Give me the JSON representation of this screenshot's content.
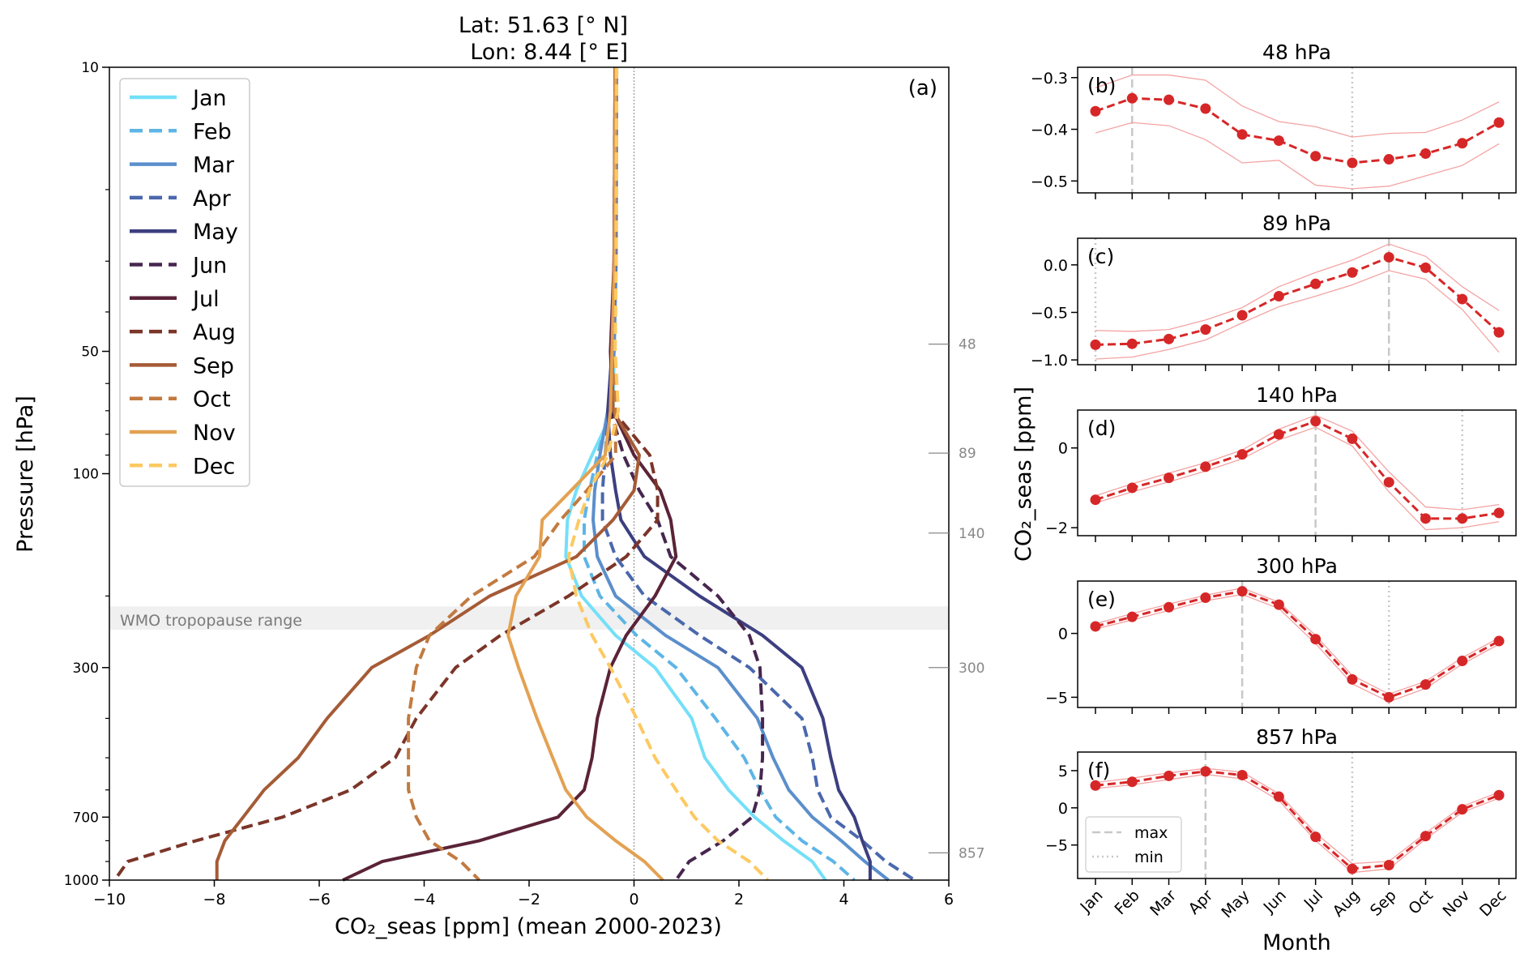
{
  "chart_data": [
    {
      "type": "line",
      "panel_label": "(a)",
      "title_lines": [
        "Lat:    51.63 [° N]",
        "Lon:     8.44 [° E]"
      ],
      "xlabel": "CO₂_seas [ppm] (mean 2000-2023)",
      "ylabel": "Pressure [hPa]",
      "xlim": [
        -10,
        6
      ],
      "ylim": [
        1000,
        10
      ],
      "yscale": "log",
      "x_ticks": [
        -10,
        -8,
        -6,
        -4,
        -2,
        0,
        2,
        4,
        6
      ],
      "x_tick_labels": [
        "−10",
        "−8",
        "−6",
        "−4",
        "−2",
        "0",
        "2",
        "4",
        "6"
      ],
      "y_ticks": [
        10,
        50,
        100,
        300,
        700,
        1000
      ],
      "y_tick_labels": [
        "10",
        "50",
        "100",
        "300",
        "700",
        "1000"
      ],
      "reference_line_x": 0,
      "shaded_band": {
        "label": "WMO tropopause range",
        "pressure_range": [
          212,
          242
        ]
      },
      "marked_levels": [
        48,
        89,
        140,
        300,
        857
      ],
      "marked_level_labels": [
        "48",
        "89",
        "140",
        "300",
        "857"
      ],
      "legend_placement": "top-left",
      "pressure_levels": [
        10,
        30,
        50,
        70,
        90,
        110,
        130,
        160,
        200,
        250,
        300,
        400,
        500,
        600,
        700,
        800,
        900,
        1000
      ],
      "series": [
        {
          "name": "Jan",
          "color": "#74dff8",
          "dashed": false,
          "values": [
            -0.35,
            -0.36,
            -0.38,
            -0.4,
            -0.8,
            -1.1,
            -1.27,
            -1.3,
            -1.0,
            -0.35,
            0.4,
            1.1,
            1.35,
            1.8,
            2.3,
            2.85,
            3.4,
            3.65
          ]
        },
        {
          "name": "Feb",
          "color": "#5eb5e6",
          "dashed": true,
          "values": [
            -0.35,
            -0.36,
            -0.38,
            -0.45,
            -0.7,
            -0.85,
            -0.95,
            -0.95,
            -0.65,
            0.05,
            0.8,
            1.55,
            2.1,
            2.4,
            2.7,
            3.2,
            3.8,
            4.2
          ]
        },
        {
          "name": "Mar",
          "color": "#5b8fcc",
          "dashed": false,
          "values": [
            -0.33,
            -0.34,
            -0.38,
            -0.5,
            -0.65,
            -0.75,
            -0.78,
            -0.7,
            -0.35,
            0.6,
            1.6,
            2.35,
            2.65,
            2.95,
            3.4,
            3.95,
            4.4,
            4.85
          ]
        },
        {
          "name": "Apr",
          "color": "#4a68ad",
          "dashed": true,
          "values": [
            -0.35,
            -0.36,
            -0.4,
            -0.48,
            -0.55,
            -0.6,
            -0.6,
            -0.35,
            0.2,
            1.25,
            2.2,
            3.2,
            3.4,
            3.5,
            3.75,
            4.35,
            4.8,
            5.35
          ]
        },
        {
          "name": "May",
          "color": "#3c3f80",
          "dashed": false,
          "values": [
            -0.35,
            -0.36,
            -0.42,
            -0.5,
            -0.45,
            -0.35,
            -0.25,
            0.2,
            1.25,
            2.45,
            3.2,
            3.6,
            3.75,
            3.9,
            4.2,
            4.35,
            4.5,
            4.5
          ]
        },
        {
          "name": "Jun",
          "color": "#47264f",
          "dashed": true,
          "values": [
            -0.35,
            -0.37,
            -0.42,
            -0.45,
            -0.2,
            0.1,
            0.45,
            0.7,
            1.6,
            2.2,
            2.4,
            2.45,
            2.45,
            2.4,
            2.25,
            1.7,
            1.05,
            0.8
          ]
        },
        {
          "name": "Jul",
          "color": "#5a2338",
          "dashed": false,
          "values": [
            -0.36,
            -0.38,
            -0.45,
            -0.4,
            0.0,
            0.5,
            0.7,
            0.8,
            0.4,
            -0.15,
            -0.45,
            -0.7,
            -0.8,
            -0.95,
            -1.45,
            -2.95,
            -4.8,
            -5.55
          ]
        },
        {
          "name": "Aug",
          "color": "#7c3529",
          "dashed": true,
          "values": [
            -0.36,
            -0.38,
            -0.42,
            -0.4,
            0.3,
            0.45,
            0.45,
            -0.15,
            -1.25,
            -2.55,
            -3.4,
            -4.15,
            -4.55,
            -5.4,
            -6.7,
            -8.35,
            -9.65,
            -9.9
          ]
        },
        {
          "name": "Sep",
          "color": "#a55b36",
          "dashed": false,
          "values": [
            -0.36,
            -0.38,
            -0.42,
            -0.4,
            0.1,
            0.0,
            -0.4,
            -1.1,
            -2.75,
            -3.9,
            -5.0,
            -5.85,
            -6.4,
            -7.05,
            -7.45,
            -7.8,
            -7.95,
            -7.95
          ]
        },
        {
          "name": "Oct",
          "color": "#c27a40",
          "dashed": true,
          "values": [
            -0.35,
            -0.37,
            -0.4,
            -0.35,
            -0.35,
            -0.9,
            -1.4,
            -1.9,
            -3.1,
            -3.9,
            -4.15,
            -4.3,
            -4.3,
            -4.3,
            -4.15,
            -3.9,
            -3.3,
            -2.95
          ]
        },
        {
          "name": "Nov",
          "color": "#e3a152",
          "dashed": false,
          "values": [
            -0.35,
            -0.37,
            -0.42,
            -0.45,
            -0.55,
            -1.2,
            -1.75,
            -1.8,
            -2.25,
            -2.4,
            -2.2,
            -1.85,
            -1.55,
            -1.3,
            -0.9,
            -0.35,
            0.2,
            0.55
          ]
        },
        {
          "name": "Dec",
          "color": "#fdc961",
          "dashed": true,
          "values": [
            -0.33,
            -0.34,
            -0.36,
            -0.3,
            -0.5,
            -0.85,
            -1.05,
            -1.25,
            -1.1,
            -0.8,
            -0.45,
            0.05,
            0.4,
            0.8,
            1.15,
            1.6,
            2.2,
            2.55
          ]
        }
      ]
    },
    {
      "type": "line",
      "panel_label": "(b)",
      "title": "48 hPa",
      "ylim": [
        -0.523,
        -0.28
      ],
      "y_ticks": [
        -0.3,
        -0.4,
        -0.5
      ],
      "y_tick_labels": [
        "−0.3",
        "−0.4",
        "−0.5"
      ],
      "mean": [
        -0.365,
        -0.34,
        -0.343,
        -0.36,
        -0.41,
        -0.422,
        -0.452,
        -0.465,
        -0.458,
        -0.447,
        -0.427,
        -0.387
      ],
      "upper": [
        -0.32,
        -0.295,
        -0.295,
        -0.305,
        -0.355,
        -0.385,
        -0.395,
        -0.415,
        -0.408,
        -0.406,
        -0.382,
        -0.347
      ],
      "lower": [
        -0.407,
        -0.387,
        -0.393,
        -0.42,
        -0.465,
        -0.46,
        -0.508,
        -0.515,
        -0.51,
        -0.49,
        -0.47,
        -0.428
      ],
      "max_month": "Feb",
      "min_month": "Aug"
    },
    {
      "type": "line",
      "panel_label": "(c)",
      "title": "89 hPa",
      "ylim": [
        -1.05,
        0.28
      ],
      "y_ticks": [
        0.0,
        -0.5,
        -1.0
      ],
      "y_tick_labels": [
        "0.0",
        "−0.5",
        "−1.0"
      ],
      "mean": [
        -0.84,
        -0.83,
        -0.78,
        -0.68,
        -0.53,
        -0.33,
        -0.2,
        -0.08,
        0.08,
        -0.03,
        -0.36,
        -0.71
      ],
      "upper": [
        -0.69,
        -0.7,
        -0.68,
        -0.58,
        -0.45,
        -0.23,
        -0.08,
        0.05,
        0.22,
        0.09,
        -0.23,
        -0.48
      ],
      "lower": [
        -0.99,
        -0.97,
        -0.89,
        -0.79,
        -0.61,
        -0.44,
        -0.33,
        -0.21,
        -0.06,
        -0.15,
        -0.47,
        -0.92
      ],
      "max_month": "Sep",
      "min_month": "Jan"
    },
    {
      "type": "line",
      "panel_label": "(d)",
      "title": "140 hPa",
      "ylim": [
        -2.2,
        0.95
      ],
      "y_ticks": [
        0,
        -2
      ],
      "y_tick_labels": [
        "0",
        "−2"
      ],
      "mean": [
        -1.3,
        -1.0,
        -0.75,
        -0.47,
        -0.16,
        0.34,
        0.67,
        0.23,
        -0.86,
        -1.77,
        -1.77,
        -1.63
      ],
      "upper": [
        -1.2,
        -0.9,
        -0.63,
        -0.37,
        -0.05,
        0.47,
        0.82,
        0.42,
        -0.6,
        -1.48,
        -1.55,
        -1.42
      ],
      "lower": [
        -1.38,
        -1.1,
        -0.85,
        -0.58,
        -0.27,
        0.2,
        0.52,
        0.05,
        -1.1,
        -2.05,
        -2.0,
        -1.85
      ],
      "max_month": "Jul",
      "min_month": "Nov"
    },
    {
      "type": "line",
      "panel_label": "(e)",
      "title": "300 hPa",
      "ylim": [
        -5.8,
        4.1
      ],
      "y_ticks": [
        0,
        -5
      ],
      "y_tick_labels": [
        "0",
        "−5"
      ],
      "mean": [
        0.55,
        1.3,
        2.05,
        2.8,
        3.3,
        2.25,
        -0.45,
        -3.6,
        -5.0,
        -4.0,
        -2.15,
        -0.6
      ],
      "upper": [
        0.75,
        1.55,
        2.3,
        3.0,
        3.55,
        2.45,
        -0.15,
        -3.3,
        -4.75,
        -3.75,
        -1.9,
        -0.35
      ],
      "lower": [
        0.35,
        1.05,
        1.8,
        2.55,
        3.05,
        1.95,
        -0.8,
        -3.95,
        -5.35,
        -4.3,
        -2.4,
        -0.85
      ],
      "max_month": "May",
      "min_month": "Sep"
    },
    {
      "type": "line",
      "panel_label": "(f)",
      "title": "857 hPa",
      "ylim": [
        -9.5,
        7.5
      ],
      "y_ticks": [
        5,
        0,
        -5
      ],
      "y_tick_labels": [
        "5",
        "0",
        "−5"
      ],
      "mean": [
        3.0,
        3.5,
        4.3,
        4.9,
        4.4,
        1.5,
        -3.9,
        -8.2,
        -7.7,
        -3.8,
        -0.2,
        1.7
      ],
      "upper": [
        3.4,
        4.0,
        4.7,
        5.3,
        4.8,
        1.9,
        -3.4,
        -7.5,
        -7.2,
        -3.4,
        0.2,
        2.1
      ],
      "lower": [
        2.6,
        3.1,
        3.8,
        4.5,
        3.9,
        1.0,
        -4.4,
        -8.7,
        -8.2,
        -4.2,
        -0.6,
        1.3
      ],
      "max_month": "Apr",
      "min_month": "Aug",
      "legend": [
        "max",
        "min"
      ]
    }
  ],
  "monthly_panels": {
    "months": [
      "Jan",
      "Feb",
      "Mar",
      "Apr",
      "May",
      "Jun",
      "Jul",
      "Aug",
      "Sep",
      "Oct",
      "Nov",
      "Dec"
    ],
    "xlabel": "Month",
    "ylabel": "CO₂_seas [ppm]",
    "line_color": "#d62728",
    "band_color": "#f4a3a3"
  }
}
